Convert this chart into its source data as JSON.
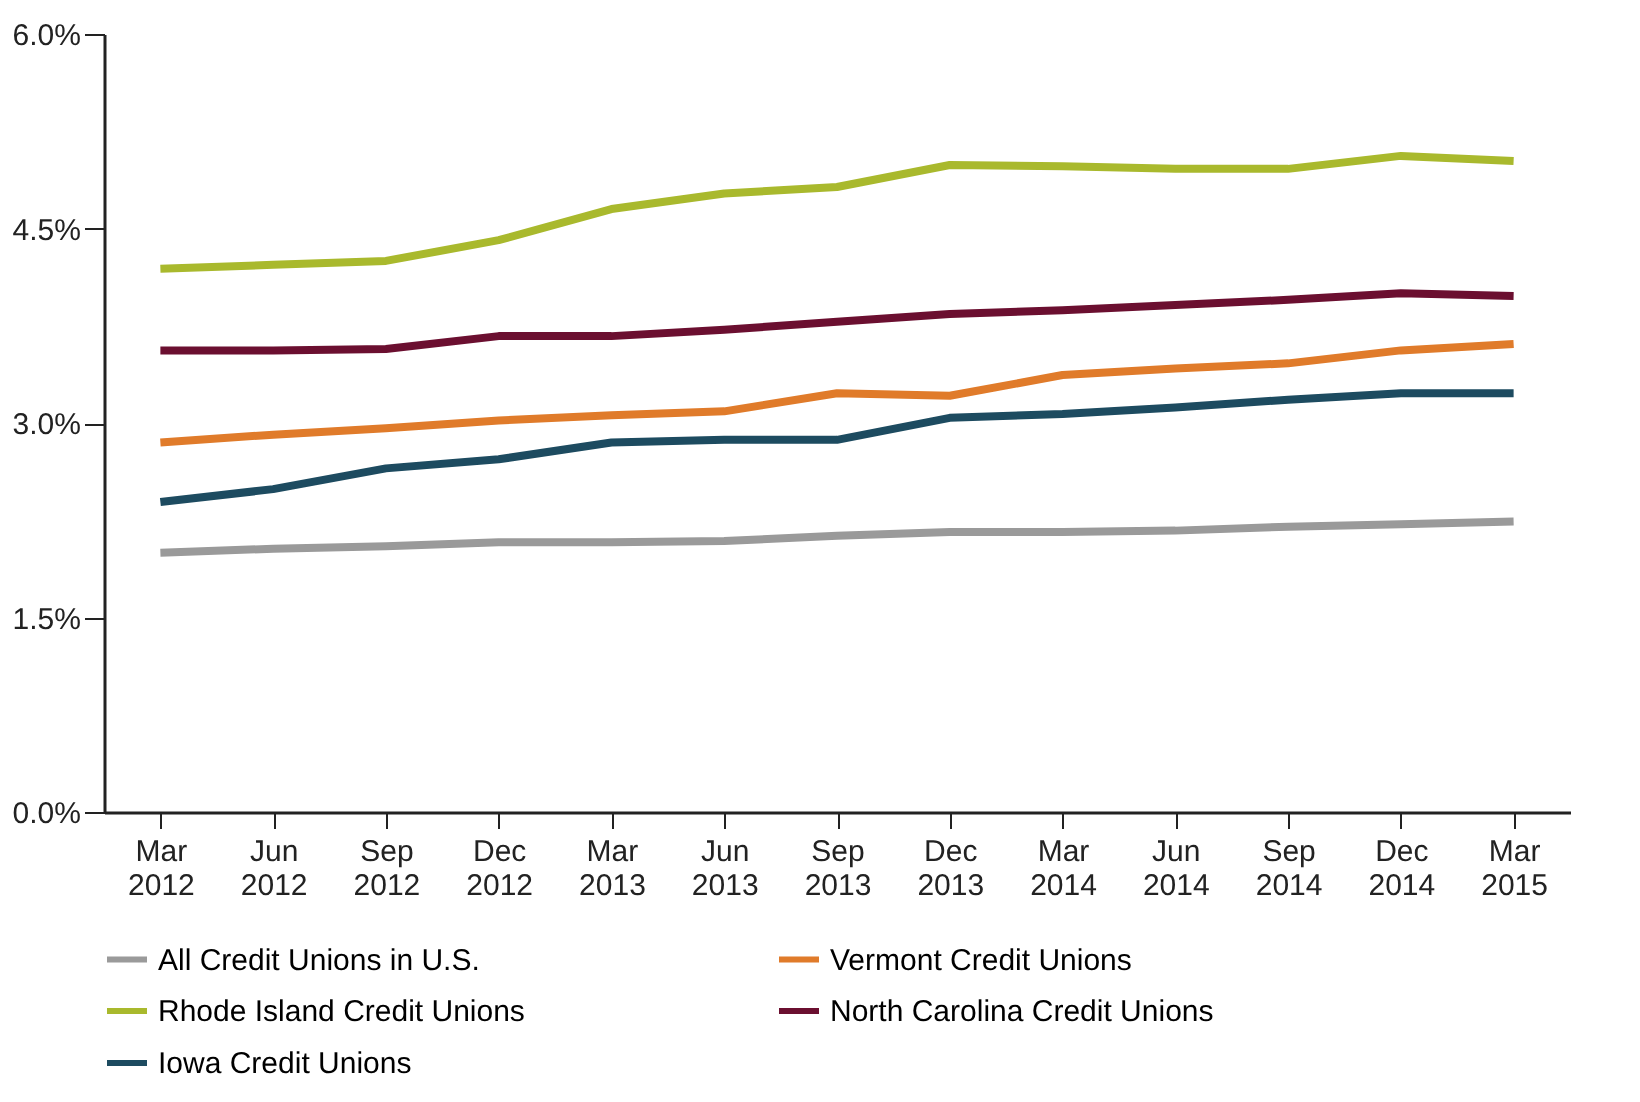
{
  "chart_data": {
    "type": "line",
    "categories": [
      "Mar 2012",
      "Jun 2012",
      "Sep 2012",
      "Dec 2012",
      "Mar 2013",
      "Jun 2013",
      "Sep 2013",
      "Dec 2013",
      "Mar 2014",
      "Jun 2014",
      "Sep 2014",
      "Dec 2014",
      "Mar 2015"
    ],
    "series": [
      {
        "name": "All Credit Unions in U.S.",
        "color": "#9a9a9a",
        "values": [
          2.0,
          2.03,
          2.05,
          2.08,
          2.08,
          2.09,
          2.13,
          2.16,
          2.16,
          2.17,
          2.2,
          2.22,
          2.24
        ]
      },
      {
        "name": "Vermont Credit Unions",
        "color": "#e07b2a",
        "values": [
          2.85,
          2.91,
          2.96,
          3.02,
          3.06,
          3.09,
          3.23,
          3.21,
          3.37,
          3.42,
          3.46,
          3.56,
          3.61
        ]
      },
      {
        "name": "Rhode Island Credit Unions",
        "color": "#a9b92d",
        "values": [
          4.19,
          4.22,
          4.25,
          4.41,
          4.65,
          4.77,
          4.82,
          4.99,
          4.98,
          4.96,
          4.96,
          5.06,
          5.02
        ]
      },
      {
        "name": "North Carolina Credit Unions",
        "color": "#6b0f30",
        "values": [
          3.56,
          3.56,
          3.57,
          3.67,
          3.67,
          3.72,
          3.78,
          3.84,
          3.87,
          3.91,
          3.95,
          4.0,
          3.98
        ]
      },
      {
        "name": "Iowa Credit Unions",
        "color": "#1d4b60",
        "values": [
          2.39,
          2.49,
          2.65,
          2.72,
          2.85,
          2.87,
          2.87,
          3.04,
          3.07,
          3.12,
          3.18,
          3.23,
          3.23
        ]
      }
    ],
    "ylim": [
      0,
      6
    ],
    "yticks": [
      {
        "value": 0,
        "label": "0.0%"
      },
      {
        "value": 1.5,
        "label": "1.5%"
      },
      {
        "value": 3,
        "label": "3.0%"
      },
      {
        "value": 4.5,
        "label": "4.5%"
      },
      {
        "value": 6,
        "label": "6.0%"
      }
    ],
    "grid": false,
    "legend": "bottom",
    "marker": "none",
    "line_style": "solid"
  }
}
